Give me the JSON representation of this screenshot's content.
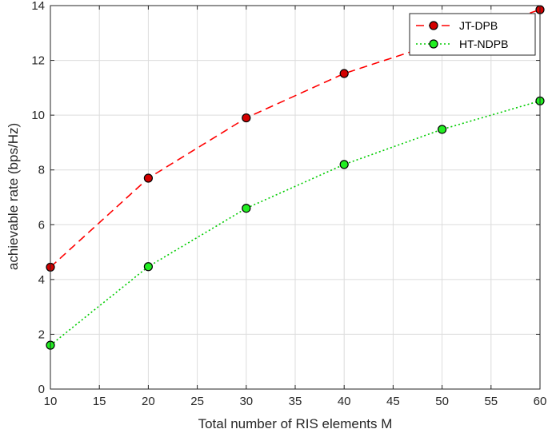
{
  "chart_data": {
    "type": "line",
    "title": "",
    "xlabel": "Total number of RIS elements M",
    "ylabel": "achievable rate (bps/Hz)",
    "xlim": [
      10,
      60
    ],
    "ylim": [
      0,
      14
    ],
    "xticks": [
      10,
      15,
      20,
      25,
      30,
      35,
      40,
      45,
      50,
      55,
      60
    ],
    "yticks": [
      0,
      2,
      4,
      6,
      8,
      10,
      12,
      14
    ],
    "grid": true,
    "legend_position": "top-right",
    "series": [
      {
        "name": "JT-DPB",
        "color": "#ff0000",
        "marker_color": "#d40000",
        "line_style": "dashed",
        "x": [
          10,
          20,
          30,
          40,
          60
        ],
        "values": [
          4.45,
          7.7,
          9.9,
          11.52,
          13.85
        ]
      },
      {
        "name": "HT-NDPB",
        "color": "#00cc00",
        "marker_color": "#22ee22",
        "line_style": "dotted",
        "x": [
          10,
          20,
          30,
          40,
          50,
          60
        ],
        "values": [
          1.6,
          4.47,
          6.6,
          8.2,
          9.48,
          10.52
        ]
      }
    ]
  }
}
